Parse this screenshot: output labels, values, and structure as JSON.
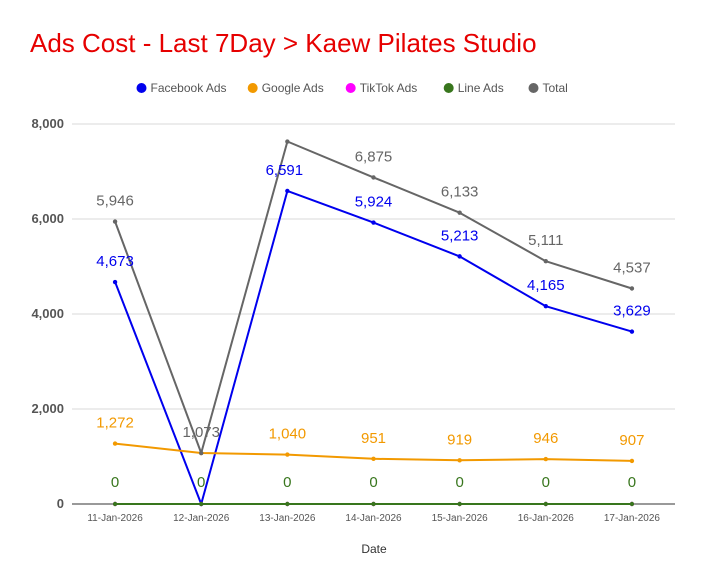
{
  "chart_data": {
    "type": "line",
    "title": "Ads Cost - Last 7Day > Kaew Pilates Studio",
    "xlabel": "Date",
    "ylabel": "",
    "categories": [
      "11-Jan-2026",
      "12-Jan-2026",
      "13-Jan-2026",
      "14-Jan-2026",
      "15-Jan-2026",
      "16-Jan-2026",
      "17-Jan-2026"
    ],
    "ylim": [
      0,
      8000
    ],
    "yticks": [
      0,
      2000,
      4000,
      6000,
      8000
    ],
    "ytick_labels": [
      "0",
      "2,000",
      "4,000",
      "6,000",
      "8,000"
    ],
    "grid": true,
    "legend_position": "top",
    "series": [
      {
        "name": "Facebook Ads",
        "color": "#0000ee",
        "values": [
          4673,
          0,
          6591,
          5924,
          5213,
          4165,
          3629
        ],
        "labels": [
          "4,673",
          "",
          "6,591",
          "5,924",
          "5,213",
          "4,165",
          "3,629"
        ]
      },
      {
        "name": "Google Ads",
        "color": "#f29900",
        "values": [
          1272,
          1073,
          1040,
          951,
          919,
          946,
          907
        ],
        "labels": [
          "1,272",
          "",
          "1,040",
          "951",
          "919",
          "946",
          "907"
        ]
      },
      {
        "name": "TikTok Ads",
        "color": "#ff00ff",
        "values": [
          0,
          0,
          0,
          0,
          0,
          0,
          0
        ],
        "labels": [
          "",
          "",
          "",
          "",
          "",
          "",
          ""
        ]
      },
      {
        "name": "Line Ads",
        "color": "#38761d",
        "values": [
          0,
          0,
          0,
          0,
          0,
          0,
          0
        ],
        "labels": [
          "0",
          "0",
          "0",
          "0",
          "0",
          "0",
          "0"
        ]
      },
      {
        "name": "Total",
        "color": "#666666",
        "values": [
          5946,
          1073,
          7631,
          6875,
          6133,
          5111,
          4537
        ],
        "labels": [
          "5,946",
          "1,073",
          "",
          "6,875",
          "6,133",
          "5,111",
          "4,537"
        ]
      }
    ]
  }
}
